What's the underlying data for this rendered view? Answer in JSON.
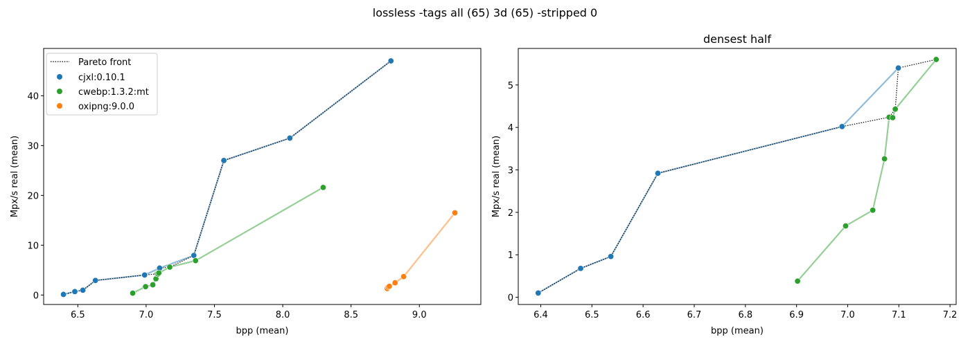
{
  "suptitle": "lossless -tags all (65) 3d (65) -stripped 0",
  "colors": {
    "cjxl": "#1f77b4",
    "cwebp": "#2ca02c",
    "oxipng": "#ff7f0e",
    "pareto": "#000000"
  },
  "legend": {
    "placement": "upper-left of left panel",
    "items": [
      "Pareto front",
      "cjxl:0.10.1",
      "cwebp:1.3.2:mt",
      "oxipng:9.0.0"
    ]
  },
  "chart_data": [
    {
      "type": "scatter",
      "title": "",
      "xlabel": "bpp (mean)",
      "ylabel": "Mpx/s real (mean)",
      "xlim": [
        6.25,
        9.45
      ],
      "ylim": [
        -1.9,
        49.5
      ],
      "xticks": [
        "6.5",
        "7.0",
        "7.5",
        "8.0",
        "8.5",
        "9.0"
      ],
      "yticks": [
        "0",
        "10",
        "20",
        "30",
        "40"
      ],
      "grid": false,
      "series": [
        {
          "name": "cjxl:0.10.1",
          "color": "#1f77b4",
          "connected": true,
          "points": [
            [
              6.395,
              0.12
            ],
            [
              6.478,
              0.69
            ],
            [
              6.537,
              0.97
            ],
            [
              6.629,
              2.92
            ],
            [
              6.989,
              4.02
            ],
            [
              7.099,
              5.4
            ],
            [
              7.349,
              7.95
            ],
            [
              7.569,
              27.0
            ],
            [
              8.052,
              31.5
            ],
            [
              8.792,
              47.0
            ]
          ]
        },
        {
          "name": "cwebp:1.3.2:mt",
          "color": "#2ca02c",
          "connected": true,
          "points": [
            [
              6.902,
              0.38
            ],
            [
              6.996,
              1.68
            ],
            [
              7.049,
              2.05
            ],
            [
              7.072,
              3.26
            ],
            [
              7.081,
              4.25
            ],
            [
              7.088,
              4.22
            ],
            [
              7.093,
              4.43
            ],
            [
              7.173,
              5.6
            ],
            [
              7.362,
              6.9
            ],
            [
              8.296,
              21.6
            ]
          ]
        },
        {
          "name": "oxipng:9.0.0",
          "color": "#ff7f0e",
          "connected": true,
          "points": [
            [
              8.765,
              1.3
            ],
            [
              8.772,
              1.6
            ],
            [
              8.78,
              1.75
            ],
            [
              8.822,
              2.45
            ],
            [
              8.885,
              3.7
            ],
            [
              9.26,
              16.5
            ]
          ]
        }
      ],
      "pareto_front": [
        [
          6.395,
          0.12
        ],
        [
          6.478,
          0.69
        ],
        [
          6.537,
          0.97
        ],
        [
          6.629,
          2.92
        ],
        [
          6.989,
          4.02
        ],
        [
          7.081,
          4.25
        ],
        [
          7.093,
          4.43
        ],
        [
          7.099,
          5.4
        ],
        [
          7.173,
          5.6
        ],
        [
          7.349,
          7.95
        ],
        [
          7.569,
          27.0
        ],
        [
          8.052,
          31.5
        ],
        [
          8.792,
          47.0
        ]
      ]
    },
    {
      "type": "scatter",
      "title": "densest half",
      "xlabel": "bpp (mean)",
      "ylabel": "Mpx/s real (mean)",
      "xlim": [
        6.356,
        7.212
      ],
      "ylim": [
        -0.17,
        5.86
      ],
      "xticks": [
        "6.4",
        "6.5",
        "6.6",
        "6.7",
        "6.8",
        "6.9",
        "7.0",
        "7.1",
        "7.2"
      ],
      "yticks": [
        "0",
        "1",
        "2",
        "3",
        "4",
        "5"
      ],
      "grid": false,
      "series": [
        {
          "name": "cjxl:0.10.1",
          "color": "#1f77b4",
          "connected": true,
          "points": [
            [
              6.395,
              0.1
            ],
            [
              6.478,
              0.68
            ],
            [
              6.537,
              0.96
            ],
            [
              6.629,
              2.92
            ],
            [
              6.989,
              4.02
            ],
            [
              7.099,
              5.4
            ]
          ]
        },
        {
          "name": "cwebp:1.3.2:mt",
          "color": "#2ca02c",
          "connected": true,
          "points": [
            [
              6.902,
              0.38
            ],
            [
              6.996,
              1.68
            ],
            [
              7.049,
              2.05
            ],
            [
              7.072,
              3.26
            ],
            [
              7.081,
              4.24
            ],
            [
              7.088,
              4.23
            ],
            [
              7.093,
              4.43
            ],
            [
              7.173,
              5.6
            ]
          ]
        }
      ],
      "pareto_front": [
        [
          6.395,
          0.1
        ],
        [
          6.478,
          0.68
        ],
        [
          6.537,
          0.96
        ],
        [
          6.629,
          2.92
        ],
        [
          6.989,
          4.02
        ],
        [
          7.081,
          4.24
        ],
        [
          7.093,
          4.43
        ],
        [
          7.099,
          5.4
        ],
        [
          7.173,
          5.6
        ]
      ]
    }
  ]
}
